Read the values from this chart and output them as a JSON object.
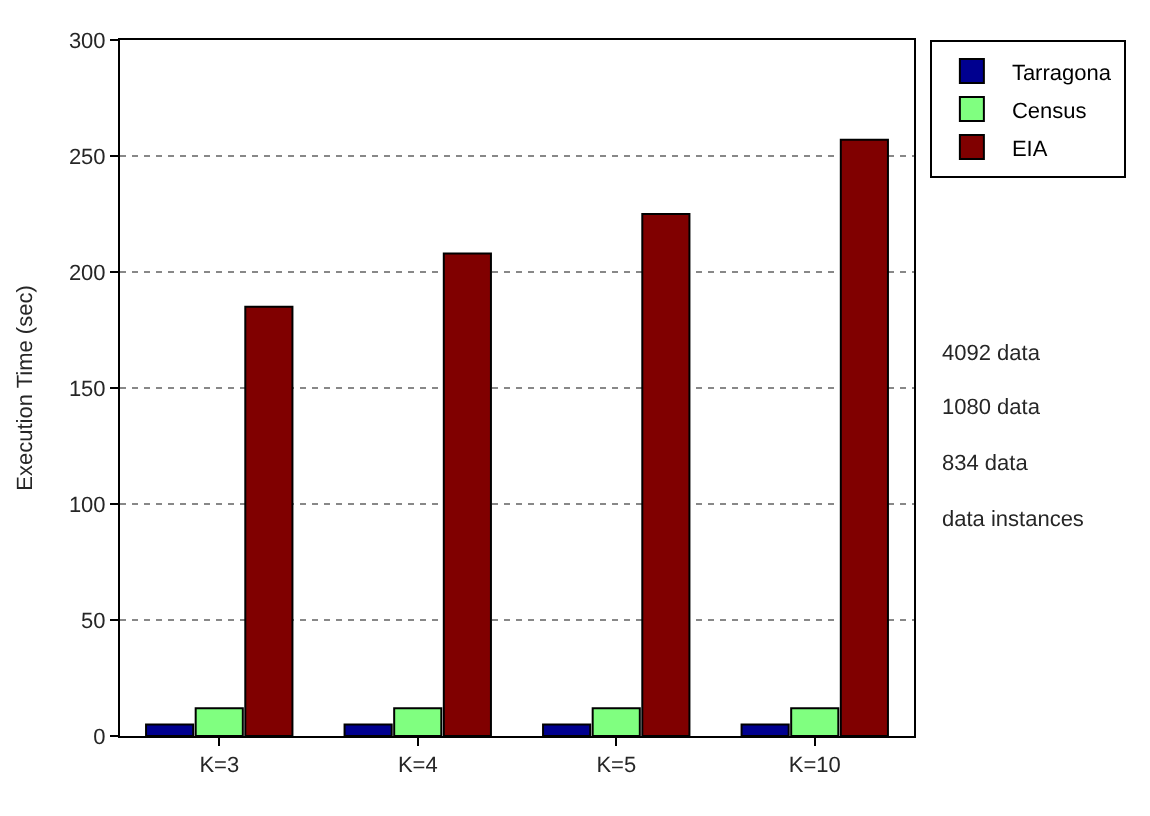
{
  "chart_data": {
    "type": "bar",
    "ylabel": "Execution Time (sec)",
    "categories": [
      "K=3",
      "K=4",
      "K=5",
      "K=10"
    ],
    "series": [
      {
        "name": "Tarragona",
        "color": "#00008f",
        "values": [
          5,
          5,
          5,
          5
        ]
      },
      {
        "name": "Census",
        "color": "#80ff80",
        "values": [
          12,
          12,
          12,
          12
        ]
      },
      {
        "name": "EIA",
        "color": "#800000",
        "values": [
          185,
          208,
          225,
          257
        ]
      }
    ],
    "ylim": [
      0,
      300
    ],
    "yticks": [
      0,
      50,
      100,
      150,
      200,
      250,
      300
    ],
    "grid": "y",
    "legend": "top right",
    "annotations": [
      "4092 data",
      "1080 data",
      "834 data",
      "data instances"
    ]
  }
}
